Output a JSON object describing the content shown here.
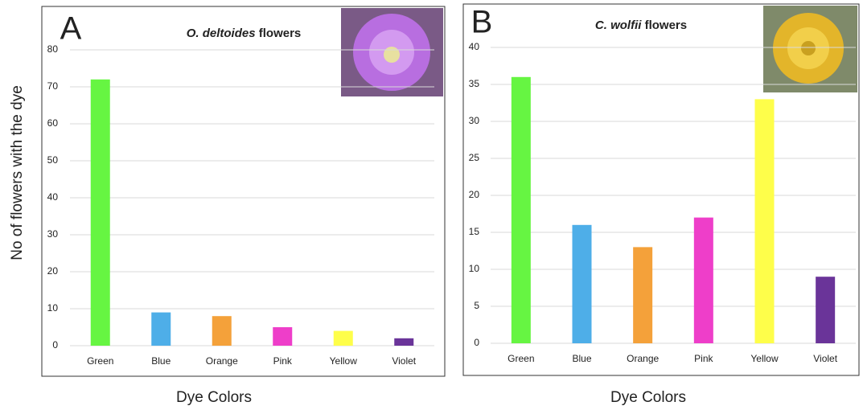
{
  "y_label": "No of flowers with the dye",
  "chart_data": [
    {
      "type": "bar",
      "panel": "A",
      "title_species": "O. deltoides",
      "title_rest": "flowers",
      "x_label": "Dye Colors",
      "categories": [
        "Green",
        "Blue",
        "Orange",
        "Pink",
        "Yellow",
        "Violet"
      ],
      "values": [
        72,
        9,
        8,
        5,
        4,
        2
      ],
      "colors": [
        "#66f542",
        "#4eaee8",
        "#f4a13a",
        "#ee3ec9",
        "#fefe4a",
        "#6a3499"
      ],
      "ylim": [
        0,
        80
      ],
      "yticks": [
        0,
        10,
        20,
        30,
        40,
        50,
        60,
        70,
        80
      ],
      "grid": true
    },
    {
      "type": "bar",
      "panel": "B",
      "title_species": "C. wolfii",
      "title_rest": "flowers",
      "x_label": "Dye Colors",
      "categories": [
        "Green",
        "Blue",
        "Orange",
        "Pink",
        "Yellow",
        "Violet"
      ],
      "values": [
        36,
        16,
        13,
        17,
        33,
        9
      ],
      "colors": [
        "#66f542",
        "#4eaee8",
        "#f4a13a",
        "#ee3ec9",
        "#fefe4a",
        "#6a3499"
      ],
      "ylim": [
        0,
        40
      ],
      "yticks": [
        0,
        5,
        10,
        15,
        20,
        25,
        30,
        35,
        40
      ],
      "grid": true
    }
  ]
}
